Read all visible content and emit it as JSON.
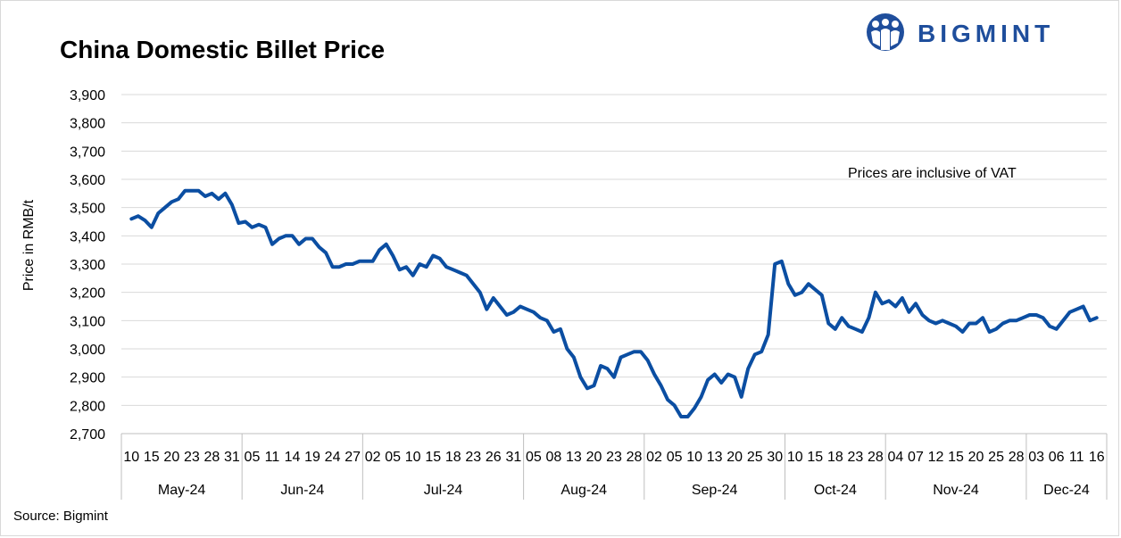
{
  "page": {
    "title": "China Domestic Billet Price",
    "source": "Source: Bigmint",
    "logo_text": "BIGMINT"
  },
  "chart_data": {
    "type": "line",
    "title": "China Domestic Billet Price",
    "ylabel": "Price in RMB/t",
    "xlabel": "",
    "ylim": [
      2700,
      3900
    ],
    "yticks": [
      2700,
      2800,
      2900,
      3000,
      3100,
      3200,
      3300,
      3400,
      3500,
      3600,
      3700,
      3800,
      3900
    ],
    "grid": true,
    "annotation": "Prices are inclusive of VAT",
    "line_color": "#0b4ea2",
    "x_tick_labels": [
      "10",
      "15",
      "20",
      "23",
      "28",
      "31",
      "05",
      "11",
      "14",
      "19",
      "24",
      "27",
      "02",
      "05",
      "10",
      "15",
      "18",
      "23",
      "26",
      "31",
      "05",
      "08",
      "13",
      "20",
      "23",
      "28",
      "02",
      "05",
      "10",
      "13",
      "20",
      "25",
      "30",
      "10",
      "15",
      "18",
      "23",
      "28",
      "04",
      "07",
      "12",
      "15",
      "20",
      "25",
      "28",
      "03",
      "06",
      "11",
      "16"
    ],
    "months": [
      {
        "label": "May-24",
        "ticks": 6
      },
      {
        "label": "Jun-24",
        "ticks": 6
      },
      {
        "label": "Jul-24",
        "ticks": 8
      },
      {
        "label": "Aug-24",
        "ticks": 6
      },
      {
        "label": "Sep-24",
        "ticks": 7
      },
      {
        "label": "Oct-24",
        "ticks": 5
      },
      {
        "label": "Nov-24",
        "ticks": 7
      },
      {
        "label": "Dec-24",
        "ticks": 4
      }
    ],
    "series": [
      {
        "values": [
          3460,
          3470,
          3455,
          3430,
          3480,
          3500,
          3520,
          3530,
          3560,
          3560,
          3560,
          3540,
          3550,
          3530,
          3550,
          3510,
          3445,
          3450,
          3430,
          3440,
          3430,
          3370,
          3390,
          3400,
          3400,
          3370,
          3390,
          3390,
          3360,
          3340,
          3290,
          3290,
          3300,
          3300,
          3310,
          3310,
          3310,
          3350,
          3370,
          3330,
          3280,
          3290,
          3260,
          3300,
          3290,
          3330,
          3320,
          3290,
          3280,
          3270,
          3260,
          3230,
          3200,
          3140,
          3180,
          3150,
          3120,
          3130,
          3150,
          3140,
          3130,
          3110,
          3100,
          3060,
          3070,
          3000,
          2970,
          2900,
          2860,
          2870,
          2940,
          2930,
          2900,
          2970,
          2980,
          2990,
          2990,
          2960,
          2910,
          2870,
          2820,
          2800,
          2760,
          2760,
          2790,
          2830,
          2890,
          2910,
          2880,
          2910,
          2900,
          2830,
          2930,
          2980,
          2990,
          3050,
          3300,
          3310,
          3230,
          3190,
          3200,
          3230,
          3210,
          3190,
          3090,
          3070,
          3110,
          3080,
          3070,
          3060,
          3110,
          3200,
          3160,
          3170,
          3150,
          3180,
          3130,
          3160,
          3120,
          3100,
          3090,
          3100,
          3090,
          3080,
          3060,
          3090,
          3090,
          3110,
          3060,
          3070,
          3090,
          3100,
          3100,
          3110,
          3120,
          3120,
          3110,
          3080,
          3070,
          3100,
          3130,
          3140,
          3150,
          3100,
          3110
        ]
      }
    ]
  }
}
